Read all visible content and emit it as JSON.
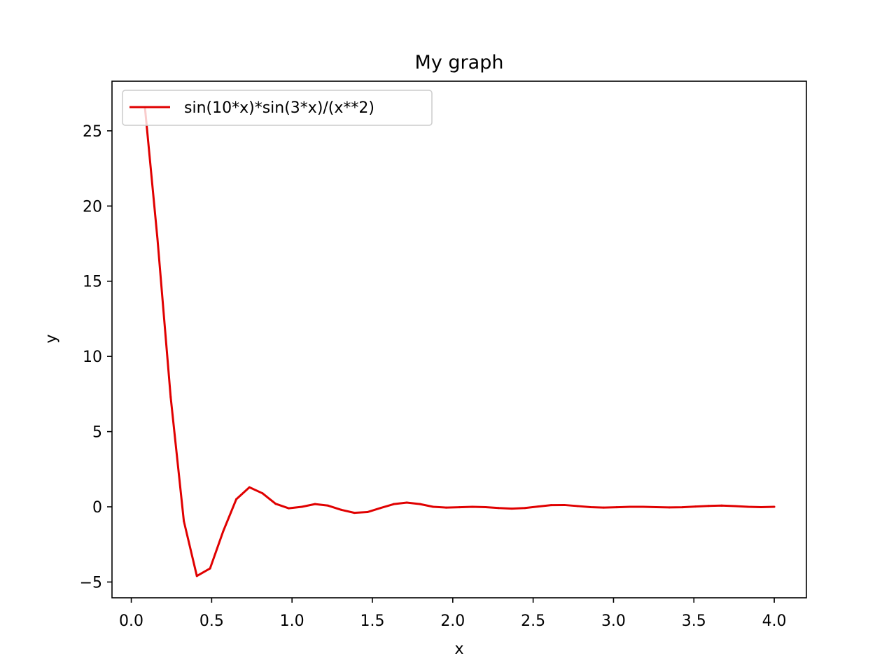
{
  "chart_data": {
    "type": "line",
    "title": "My graph",
    "xlabel": "x",
    "ylabel": "y",
    "xlim": [
      -0.12,
      4.2
    ],
    "ylim": [
      -6.05,
      28.3
    ],
    "xticks": [
      0.0,
      0.5,
      1.0,
      1.5,
      2.0,
      2.5,
      3.0,
      3.5,
      4.0
    ],
    "xtick_labels": [
      "0.0",
      "0.5",
      "1.0",
      "1.5",
      "2.0",
      "2.5",
      "3.0",
      "3.5",
      "4.0"
    ],
    "yticks": [
      -5,
      0,
      5,
      10,
      15,
      20,
      25
    ],
    "ytick_labels": [
      "−5",
      "0",
      "5",
      "10",
      "15",
      "20",
      "25"
    ],
    "grid": false,
    "legend_position": "upper left",
    "series": [
      {
        "name": "sin(10*x)*sin(3*x)/(x**2)",
        "color": "#e00000",
        "x": [
          0.085,
          0.163,
          0.245,
          0.327,
          0.408,
          0.49,
          0.571,
          0.653,
          0.735,
          0.816,
          0.898,
          0.98,
          1.061,
          1.143,
          1.224,
          1.306,
          1.388,
          1.469,
          1.551,
          1.633,
          1.714,
          1.796,
          1.878,
          1.959,
          2.041,
          2.122,
          2.204,
          2.286,
          2.367,
          2.449,
          2.531,
          2.612,
          2.694,
          2.776,
          2.857,
          2.939,
          3.02,
          3.102,
          3.184,
          3.265,
          3.347,
          3.429,
          3.51,
          3.592,
          3.673,
          3.755,
          3.837,
          3.918,
          4.0
        ],
        "y": [
          26.55,
          17.8,
          7.3,
          -0.95,
          -4.6,
          -4.1,
          -1.65,
          0.5,
          1.3,
          0.9,
          0.2,
          -0.1,
          0.0,
          0.18,
          0.08,
          -0.2,
          -0.4,
          -0.35,
          -0.08,
          0.18,
          0.28,
          0.18,
          0.0,
          -0.05,
          -0.03,
          0.0,
          -0.02,
          -0.08,
          -0.12,
          -0.08,
          0.02,
          0.11,
          0.12,
          0.05,
          -0.02,
          -0.05,
          -0.03,
          0.0,
          0.0,
          -0.02,
          -0.04,
          -0.03,
          0.02,
          0.06,
          0.08,
          0.05,
          0.0,
          -0.02,
          0.0
        ]
      }
    ]
  },
  "colors": {
    "series_line": "#e00000",
    "axes": "#000000",
    "legend_border": "#cccccc",
    "background": "#ffffff"
  }
}
